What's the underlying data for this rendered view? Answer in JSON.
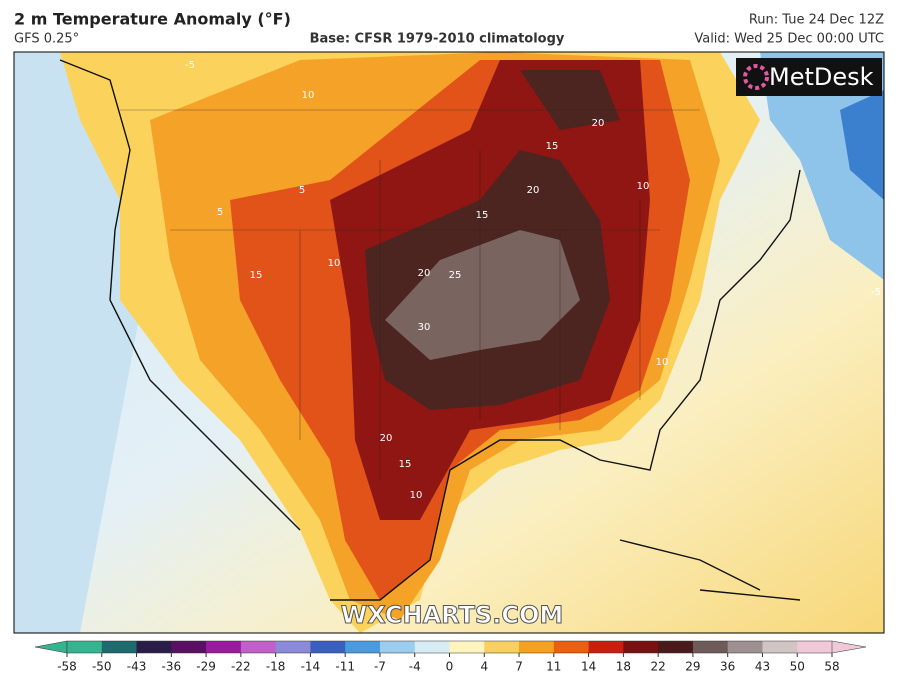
{
  "header": {
    "title": "2 m Temperature Anomaly (°F)",
    "model": "GFS 0.25°",
    "base": "Base: CFSR 1979-2010 climatology",
    "run": "Run: Tue 24 Dec 12Z",
    "valid": "Valid: Wed 25 Dec 00:00 UTC"
  },
  "logo": "MetDesk",
  "watermark": "WXCHARTS.COM",
  "colorbar": {
    "ticks": [
      -58,
      -50,
      -43,
      -36,
      -29,
      -22,
      -18,
      -14,
      -11,
      -7,
      -4,
      0,
      4,
      7,
      11,
      14,
      18,
      22,
      29,
      36,
      43,
      50,
      58
    ],
    "colors": [
      "#35b58f",
      "#1d6b6e",
      "#2a1d4a",
      "#5a1060",
      "#9b1aa0",
      "#c060c8",
      "#8a8ad8",
      "#3b5fc0",
      "#4a9ae0",
      "#9ccdee",
      "#d8ecf6",
      "#fdf4c0",
      "#f8d060",
      "#f4a020",
      "#e86010",
      "#c82010",
      "#7a1010",
      "#4a1a1a",
      "#6e5a58",
      "#9e9090",
      "#d0c4c4",
      "#f0c8d8"
    ]
  },
  "contour_labels": [
    10,
    20,
    15,
    20,
    15,
    10,
    5,
    15,
    10,
    20,
    25,
    30,
    10,
    20,
    15,
    10,
    -5,
    -5,
    5
  ]
}
